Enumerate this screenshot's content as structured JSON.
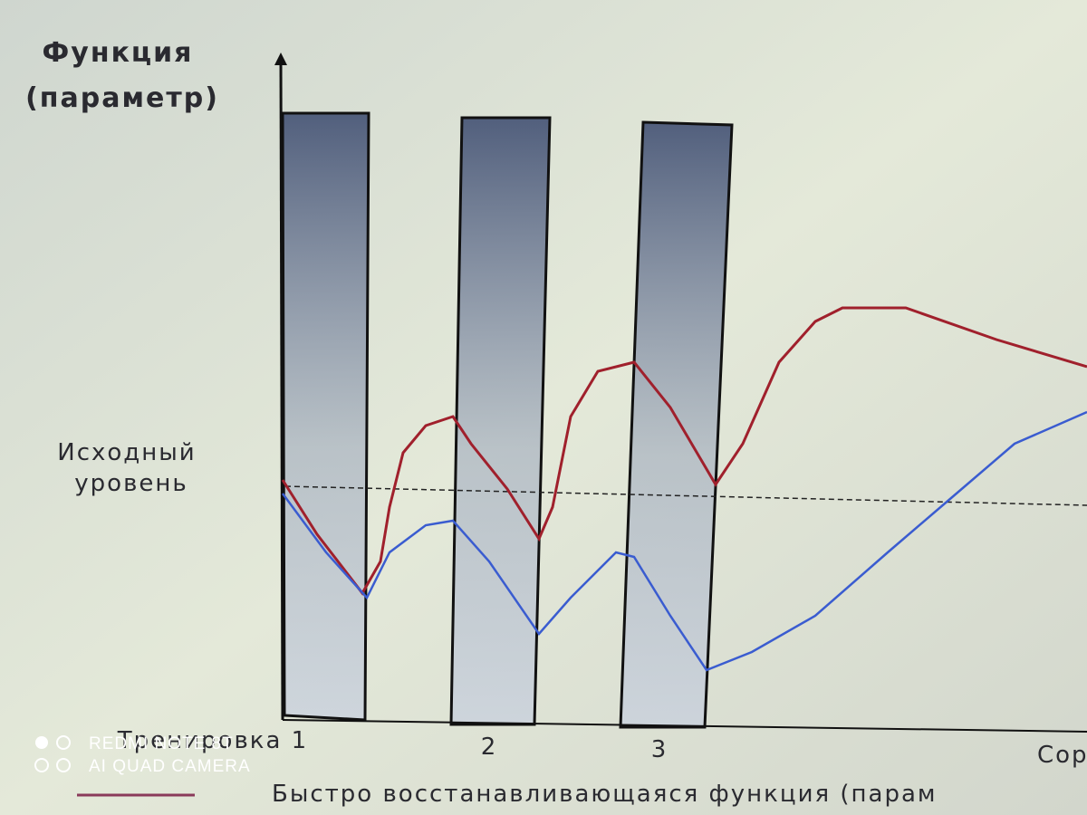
{
  "title": [
    "Функция",
    "(параметр)"
  ],
  "baseline_label": [
    "Исходный",
    "уровень"
  ],
  "trainings": [
    "Тренировка 1",
    "2",
    "3"
  ],
  "x_axis_label": "Сор",
  "legend": "Быстро восстанавливающаяся функция (парам",
  "watermark": [
    "REDMI NOTE 8T",
    "AI QUAD CAMERA"
  ]
}
